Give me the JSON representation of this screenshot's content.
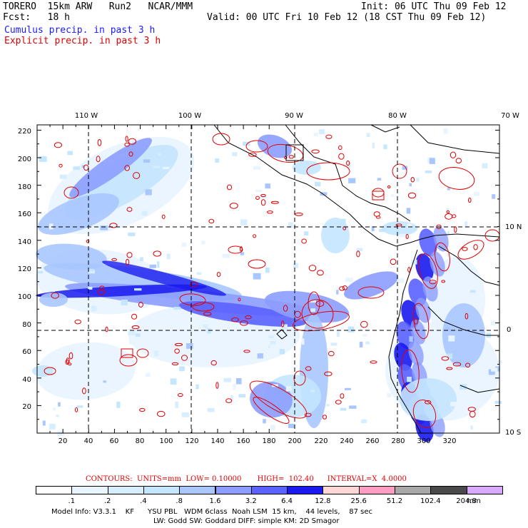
{
  "header": {
    "model": "TORERO  15km ARW   Run2   NCAR/MMM",
    "init": "Init: 06 UTC Thu 09 Feb 12",
    "fcst": "Fcst:   18 h",
    "valid": "Valid: 00 UTC Fri 10 Feb 12 (18 CST Thu 09 Feb 12)",
    "field_blue": "Cumulus precip. in past 3 h",
    "field_red": "Explicit precip. in past 3 h",
    "color_blue": "#1a1aff",
    "color_red": "#e00000"
  },
  "map": {
    "lon_labels": [
      "110 W",
      "100 W",
      "90 W",
      "80 W",
      "70 W"
    ],
    "lat_labels": [
      "10 N",
      "0",
      "10 S"
    ],
    "x_ticks": [
      "20",
      "40",
      "60",
      "80",
      "100",
      "120",
      "140",
      "160",
      "180",
      "200",
      "220",
      "240",
      "260",
      "280",
      "300",
      "320"
    ],
    "y_ticks": [
      "20",
      "40",
      "60",
      "80",
      "100",
      "120",
      "140",
      "160",
      "180",
      "200",
      "220"
    ]
  },
  "colorbar": {
    "colors": [
      "#ffffff",
      "#e8f4ff",
      "#d6eeff",
      "#c4e6ff",
      "#a9c6ff",
      "#8c9dff",
      "#5a62ff",
      "#1a1aee",
      "#ffd6d6",
      "#ff9ec2",
      "#a8a8a8",
      "#4a4a4a",
      "#d9a8ff"
    ],
    "labels": [
      ".1",
      ".2",
      ".4",
      ".8",
      "1.6",
      "3.2",
      "6.4",
      "12.8",
      "25.6",
      "51.2",
      "102.4",
      "204.8"
    ],
    "unit": "mm"
  },
  "contours_line": "CONTOURS:  UNITS=mm  LOW= 0.10000       HIGH=  102.40      INTERVAL=X  4.0000",
  "footer": {
    "line1": "Model Info: V3.3.1    KF      YSU PBL   WDM 6class  Noah LSM  15 km,    44 levels,    87 sec",
    "line2": "LW: Godd SW: Goddard DIFF: simple KM: 2D Smagor"
  }
}
